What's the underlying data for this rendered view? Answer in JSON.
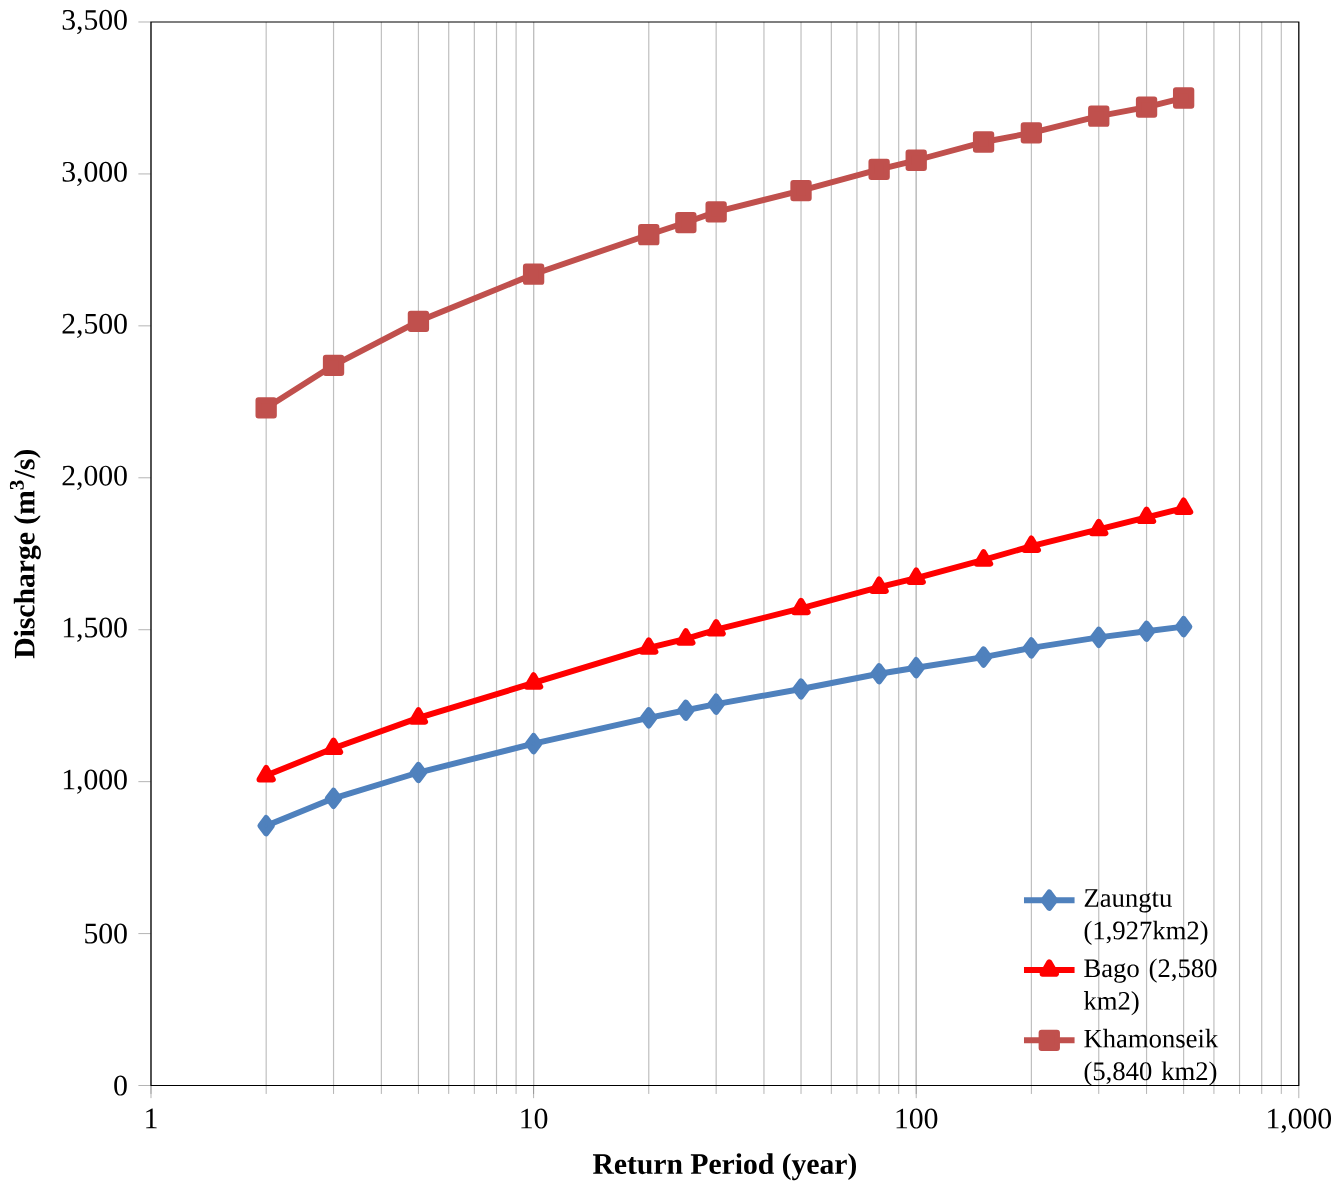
{
  "chart_data": {
    "type": "line",
    "xlabel": "Return Period (year)",
    "ylabel": "Discharge (m$^{3}$/s)",
    "log": "x",
    "grid": "x",
    "legend": "bottom right",
    "xlim": [
      1,
      1000
    ],
    "xticks": [
      1,
      10,
      100,
      {
        "value": 1000,
        "label": "1,000"
      }
    ],
    "ylim": [
      0,
      3500
    ],
    "yticks": [
      0,
      500,
      {
        "value": 1000,
        "label": "1,000"
      },
      {
        "value": 1500,
        "label": "1,500"
      },
      {
        "value": 2000,
        "label": "2,000"
      },
      {
        "value": 2500,
        "label": "2,500"
      },
      {
        "value": 3000,
        "label": "3,000"
      },
      {
        "value": 3500,
        "label": "3,500"
      }
    ],
    "x": [
      2,
      3,
      5,
      10,
      20,
      25,
      30,
      50,
      80,
      100,
      150,
      200,
      300,
      400,
      500
    ],
    "series": [
      {
        "name": "Zaungtu (1,927km2)",
        "color": "#4f81bd",
        "marker": "diamond",
        "values": [
          855,
          945,
          1030,
          1125,
          1210,
          1235,
          1255,
          1305,
          1355,
          1375,
          1410,
          1440,
          1475,
          1495,
          1510
        ]
      },
      {
        "name": "Bago (2,580 km2)",
        "color": "#ff0000",
        "marker": "triangle",
        "values": [
          1020,
          1110,
          1210,
          1325,
          1440,
          1470,
          1500,
          1570,
          1640,
          1670,
          1730,
          1775,
          1830,
          1870,
          1900
        ]
      },
      {
        "name": "Khamonseik (5,840 km2)",
        "color": "#c0504d",
        "marker": "square",
        "values": [
          2230,
          2370,
          2515,
          2670,
          2800,
          2840,
          2875,
          2945,
          3015,
          3045,
          3105,
          3135,
          3190,
          3220,
          3250
        ]
      }
    ]
  }
}
